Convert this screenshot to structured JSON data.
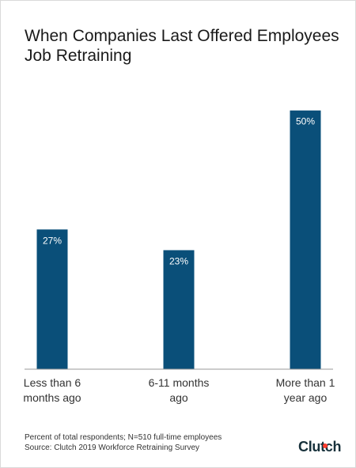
{
  "title": "When Companies Last Offered Employees Job Retraining",
  "chart_data": {
    "type": "bar",
    "title": "When Companies Last Offered Employees Job Retraining",
    "categories": [
      [
        "Less than 6",
        "months ago"
      ],
      [
        "6-11 months",
        "ago"
      ],
      [
        "More than 1",
        "year ago"
      ]
    ],
    "values": [
      27,
      23,
      50
    ],
    "value_labels": [
      "27%",
      "23%",
      "50%"
    ],
    "ylim": [
      0,
      55
    ],
    "grid": false,
    "legend": "none",
    "bar_color": "#0a4f79",
    "label_color": "#ffffff"
  },
  "footer": {
    "note": "Percent of total respondents; N=510 full-time employees",
    "source": "Source: Clutch 2019 Workforce Retraining Survey"
  },
  "logo": "Clutch"
}
